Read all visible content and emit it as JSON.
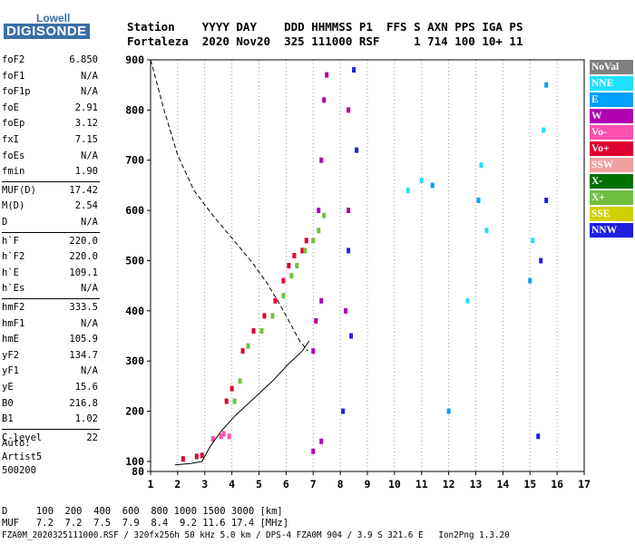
{
  "logo": {
    "top": "Lowell",
    "bottom": "DIGISONDE"
  },
  "header": {
    "row1": "Station    YYYY DAY    DDD HHMMSS P1  FFS S AXN PPS IGA PS",
    "row2": "Fortaleza  2020 Nov20  325 111000 RSF     1 714 100 10+ 11"
  },
  "params": [
    {
      "label": "foF2",
      "value": "6.850"
    },
    {
      "label": "foF1",
      "value": "N/A"
    },
    {
      "label": "foF1p",
      "value": "N/A"
    },
    {
      "label": "foE",
      "value": "2.91"
    },
    {
      "label": "foEp",
      "value": "3.12"
    },
    {
      "label": "fxI",
      "value": "7.15"
    },
    {
      "label": "foEs",
      "value": "N/A"
    },
    {
      "label": "fmin",
      "value": "1.90"
    },
    {
      "label": "MUF(D)",
      "value": "17.42"
    },
    {
      "label": "M(D)",
      "value": "2.54"
    },
    {
      "label": "D",
      "value": "N/A"
    },
    {
      "label": "h`F",
      "value": "220.0"
    },
    {
      "label": "h`F2",
      "value": "220.0"
    },
    {
      "label": "h`E",
      "value": "109.1"
    },
    {
      "label": "h`Es",
      "value": "N/A"
    },
    {
      "label": "hmF2",
      "value": "333.5"
    },
    {
      "label": "hmF1",
      "value": "N/A"
    },
    {
      "label": "hmE",
      "value": "105.9"
    },
    {
      "label": "yF2",
      "value": "134.7"
    },
    {
      "label": "yF1",
      "value": "N/A"
    },
    {
      "label": "yE",
      "value": "15.6"
    },
    {
      "label": "B0",
      "value": "216.8"
    },
    {
      "label": "B1",
      "value": "1.02"
    },
    {
      "label": "C-level",
      "value": "22"
    }
  ],
  "auto": [
    "Auto:",
    "Artist5",
    "500200"
  ],
  "legend": [
    {
      "label": "NoVal",
      "color": "#808080"
    },
    {
      "label": "NNE",
      "color": "#20e0ff"
    },
    {
      "label": "E",
      "color": "#00a0ff"
    },
    {
      "label": "W",
      "color": "#b000b0"
    },
    {
      "label": "Vo-",
      "color": "#ff50b0"
    },
    {
      "label": "Vo+",
      "color": "#e00030"
    },
    {
      "label": "SSW",
      "color": "#f0a0a0"
    },
    {
      "label": "X-",
      "color": "#007000"
    },
    {
      "label": "X+",
      "color": "#70c040"
    },
    {
      "label": "SSE",
      "color": "#d0d000"
    },
    {
      "label": "NNW",
      "color": "#2020e0"
    }
  ],
  "footer": {
    "line1": "D     100  200  400  600  800 1000 1500 3000 [km]",
    "line2": "MUF   7.2  7.2  7.5  7.9  8.4  9.2 11.6 17.4 [MHz]",
    "line3": "FZA0M_2020325111000.RSF / 320fx256h 50 kHz 5.0 km / DPS-4 FZA0M 904 / 3.9 S 321.6 E   Ion2Png 1.3.20"
  },
  "chart_data": {
    "type": "scatter",
    "xlim": [
      1,
      17
    ],
    "ylim": [
      80,
      900
    ],
    "x_ticks": [
      1,
      2,
      3,
      4,
      5,
      6,
      7,
      8,
      9,
      10,
      11,
      12,
      13,
      14,
      15,
      16,
      17
    ],
    "y_ticks": [
      80,
      100,
      200,
      300,
      400,
      500,
      600,
      700,
      800,
      900
    ],
    "grid": "vertical dotted at integer MHz",
    "legend_position": "right",
    "traces": [
      {
        "legend": "Vo+",
        "points": [
          [
            2.2,
            105
          ],
          [
            2.7,
            110
          ],
          [
            2.9,
            112
          ],
          [
            3.8,
            220
          ],
          [
            4.0,
            245
          ],
          [
            4.4,
            320
          ],
          [
            4.8,
            360
          ],
          [
            5.2,
            390
          ],
          [
            5.6,
            420
          ],
          [
            5.9,
            460
          ],
          [
            6.1,
            490
          ],
          [
            6.3,
            510
          ],
          [
            6.6,
            520
          ],
          [
            6.75,
            540
          ]
        ]
      },
      {
        "legend": "X+",
        "points": [
          [
            4.1,
            220
          ],
          [
            4.3,
            260
          ],
          [
            4.6,
            330
          ],
          [
            5.1,
            360
          ],
          [
            5.5,
            390
          ],
          [
            5.9,
            430
          ],
          [
            6.2,
            470
          ],
          [
            6.4,
            490
          ],
          [
            6.7,
            520
          ],
          [
            7.0,
            540
          ],
          [
            7.2,
            560
          ],
          [
            7.4,
            590
          ]
        ]
      },
      {
        "legend": "Vo-",
        "points": [
          [
            3.3,
            145
          ],
          [
            3.6,
            150
          ],
          [
            3.7,
            155
          ],
          [
            3.9,
            150
          ]
        ]
      },
      {
        "legend": "W",
        "points": [
          [
            7.0,
            320
          ],
          [
            7.1,
            380
          ],
          [
            7.3,
            420
          ],
          [
            7.2,
            600
          ],
          [
            7.3,
            700
          ],
          [
            7.4,
            820
          ],
          [
            7.5,
            870
          ],
          [
            8.2,
            400
          ],
          [
            8.3,
            600
          ],
          [
            8.3,
            800
          ],
          [
            7.0,
            120
          ],
          [
            7.3,
            140
          ]
        ]
      },
      {
        "legend": "NNW",
        "points": [
          [
            8.1,
            200
          ],
          [
            8.4,
            350
          ],
          [
            8.3,
            520
          ],
          [
            8.6,
            720
          ],
          [
            8.5,
            880
          ],
          [
            15.4,
            500
          ],
          [
            15.6,
            620
          ],
          [
            15.3,
            150
          ]
        ]
      },
      {
        "legend": "NNE",
        "points": [
          [
            10.5,
            640
          ],
          [
            11.0,
            660
          ],
          [
            13.2,
            690
          ],
          [
            13.4,
            560
          ],
          [
            15.1,
            540
          ],
          [
            15.5,
            760
          ],
          [
            12.7,
            420
          ]
        ]
      },
      {
        "legend": "E",
        "points": [
          [
            11.4,
            650
          ],
          [
            13.1,
            620
          ],
          [
            15.0,
            460
          ],
          [
            15.6,
            850
          ],
          [
            12.0,
            200
          ]
        ]
      }
    ],
    "virtual_height_curve": [
      [
        1.9,
        93
      ],
      [
        2.5,
        96
      ],
      [
        2.9,
        100
      ],
      [
        3.2,
        130
      ],
      [
        3.6,
        160
      ],
      [
        4.1,
        190
      ],
      [
        4.8,
        225
      ],
      [
        5.5,
        260
      ],
      [
        6.1,
        295
      ],
      [
        6.6,
        320
      ],
      [
        6.85,
        340
      ]
    ],
    "profile_curve": [
      [
        1.0,
        900
      ],
      [
        1.5,
        800
      ],
      [
        2.0,
        710
      ],
      [
        2.6,
        640
      ],
      [
        3.3,
        590
      ],
      [
        4.0,
        545
      ],
      [
        4.7,
        500
      ],
      [
        5.3,
        455
      ],
      [
        5.8,
        410
      ],
      [
        6.2,
        370
      ],
      [
        6.5,
        340
      ],
      [
        6.8,
        320
      ]
    ]
  }
}
